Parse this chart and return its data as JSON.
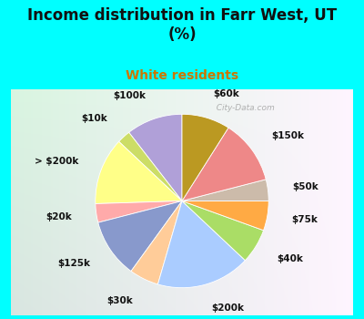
{
  "title": "Income distribution in Farr West, UT\n(%)",
  "subtitle": "White residents",
  "title_color": "#111111",
  "subtitle_color": "#cc7700",
  "bg_cyan": "#00FFFF",
  "bg_chart_topleft": "#c8ede0",
  "bg_chart_topright": "#e8f8f0",
  "bg_chart_bottomleft": "#b8e8d0",
  "watermark": "  City-Data.com",
  "labels": [
    "$100k",
    "$10k",
    "> $200k",
    "$20k",
    "$125k",
    "$30k",
    "$200k",
    "$40k",
    "$75k",
    "$50k",
    "$150k",
    "$60k"
  ],
  "values": [
    10.5,
    2.5,
    12.5,
    3.5,
    11.0,
    5.5,
    17.5,
    6.5,
    5.5,
    4.0,
    12.0,
    9.0
  ],
  "colors": [
    "#b0a0d8",
    "#ccdd66",
    "#ffff88",
    "#ffaaaa",
    "#8899cc",
    "#ffcc99",
    "#aaccff",
    "#aadd66",
    "#ffaa44",
    "#ccbbaa",
    "#ee8888",
    "#bb9922"
  ],
  "startangle": 90,
  "label_fontsize": 7.5,
  "title_fontsize": 12,
  "subtitle_fontsize": 10
}
